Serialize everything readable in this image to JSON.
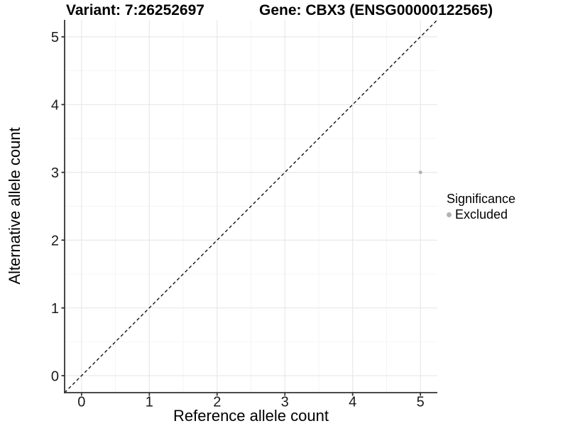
{
  "plot": {
    "title_variant": "Variant: 7:26252697",
    "title_gene": "Gene: CBX3 (ENSG00000122565)",
    "xlabel": "Reference allele count",
    "ylabel": "Alternative allele count"
  },
  "legend": {
    "title": "Significance",
    "items": [
      {
        "label": "Excluded",
        "color": "#b3b3b3"
      }
    ]
  },
  "chart_data": {
    "type": "scatter",
    "title": "Variant: 7:26252697        Gene: CBX3 (ENSG00000122565)",
    "xlabel": "Reference allele count",
    "ylabel": "Alternative allele count",
    "xlim": [
      -0.25,
      5.25
    ],
    "ylim": [
      -0.25,
      5.25
    ],
    "xticks": [
      0,
      1,
      2,
      3,
      4,
      5
    ],
    "yticks": [
      0,
      1,
      2,
      3,
      4,
      5
    ],
    "grid": "major-and-minor",
    "legend_position": "right",
    "series": [
      {
        "name": "Excluded",
        "color": "#b3b3b3",
        "points": [
          {
            "x": 5,
            "y": 3
          }
        ]
      }
    ],
    "reference_line": {
      "type": "identity",
      "style": "dashed",
      "color": "#000000",
      "from": [
        -0.25,
        -0.25
      ],
      "to": [
        5.25,
        5.25
      ]
    },
    "colors": {
      "background": "#ffffff",
      "grid_major": "#e8e8e8",
      "grid_minor": "#f4f4f4",
      "axis": "#333333",
      "tick_text": "#1a1a1a",
      "point": "#b3b3b3",
      "dashed_line": "#000000"
    }
  }
}
